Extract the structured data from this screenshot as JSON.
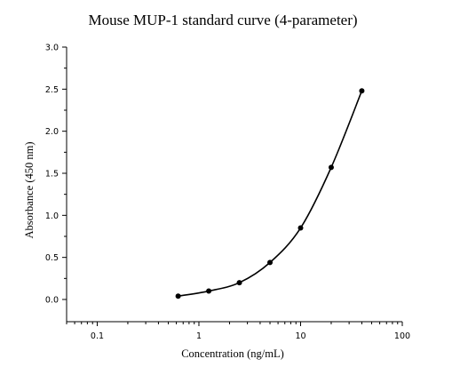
{
  "chart_data": {
    "type": "scatter",
    "title": "Mouse MUP-1 standard curve (4-parameter)",
    "xlabel": "Concentration (ng/mL)",
    "ylabel": "Absorbance (450 nm)",
    "x_scale": "log",
    "xlim": [
      0.05,
      100
    ],
    "ylim": [
      0,
      3.0
    ],
    "x_ticks": [
      0.1,
      1,
      10,
      100
    ],
    "x_tick_labels": [
      "0.1",
      "1",
      "10",
      "100"
    ],
    "y_ticks": [
      0,
      0.5,
      1.0,
      1.5,
      2.0,
      2.5,
      3.0
    ],
    "y_tick_labels": [
      "0.0",
      "0.5",
      "1.0",
      "1.5",
      "2.0",
      "2.5",
      "3.0"
    ],
    "grid": false,
    "series": [
      {
        "x": [
          0.625,
          1.25,
          2.5,
          5,
          10,
          20,
          40
        ],
        "y": [
          0.04,
          0.1,
          0.2,
          0.44,
          0.85,
          1.57,
          2.48
        ],
        "marker": "circle",
        "fit_line": true,
        "color": "#000000"
      }
    ]
  }
}
